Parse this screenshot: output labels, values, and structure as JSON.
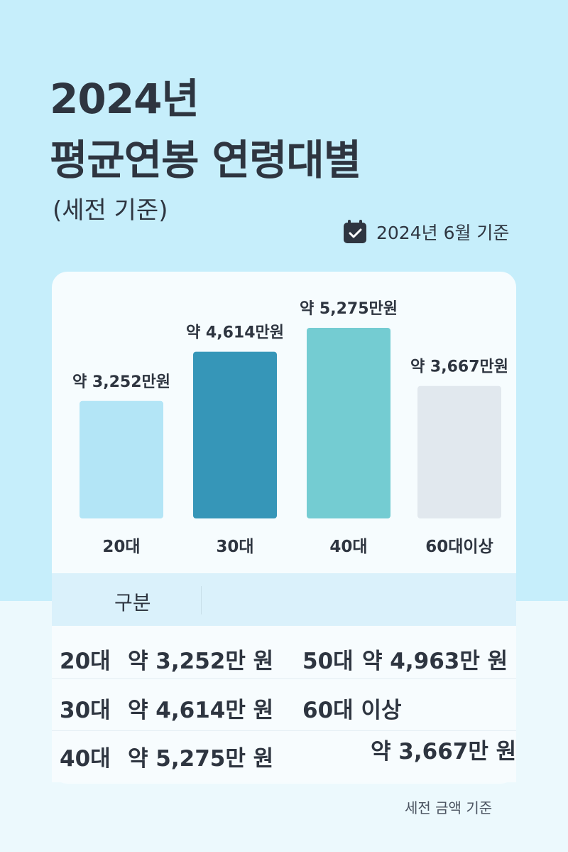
{
  "header": {
    "title_line1": "2024년",
    "title_line2": "평균연봉 연령대별",
    "subtitle": "(세전 기준)",
    "date_label": "2024년 6월 기준"
  },
  "chart_data": {
    "type": "bar",
    "categories": [
      "20대",
      "30대",
      "40대",
      "60대이상"
    ],
    "values": [
      3252,
      4614,
      5275,
      3667
    ],
    "value_labels": [
      "약 3,252만원",
      "약 4,614만원",
      "약 5,275만원",
      "약 3,667만원"
    ],
    "unit": "만원",
    "colors": [
      "#b3e5f6",
      "#3696b8",
      "#74ccd2",
      "#e1e8ee"
    ]
  },
  "table": {
    "header": "구분",
    "rows": [
      {
        "left_age": "20대",
        "left_value": "약 3,252만 원",
        "right_age": "50대",
        "right_value": "약 4,963만 원"
      },
      {
        "left_age": "30대",
        "left_value": "약 4,614만 원",
        "right_age": "60대 이상",
        "right_value": ""
      },
      {
        "left_age": "40대",
        "left_value": "약 5,275만 원",
        "right_age": "",
        "right_value": "약 3,667만 원"
      }
    ]
  },
  "footnote": "세전 금액 기준"
}
